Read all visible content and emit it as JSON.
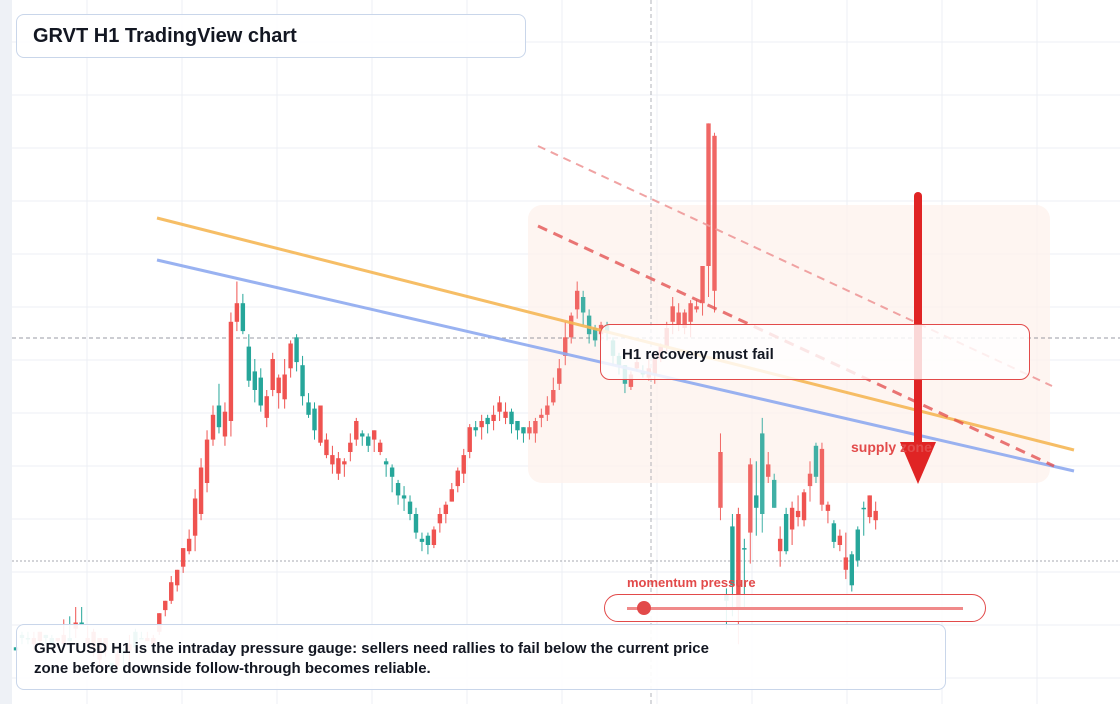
{
  "title": "GRVT H1 TradingView chart",
  "note": "GRVTUSD H1 is the intraday pressure gauge: sellers need rallies to fail below the current price zone before downside follow-through becomes reliable.",
  "callout": "H1 recovery must fail",
  "supply_label": "supply zone",
  "momentum_label": "momentum pressure",
  "momentum_pressure_level": 0.05,
  "colors": {
    "up": "#26a69a",
    "down": "#ef5350",
    "trend_orange": "#f6b756",
    "trend_blue": "#8faaf0",
    "accent_red": "#e24a4a",
    "supply_fill": "#fdf1ec"
  },
  "chart_data": {
    "type": "candlestick",
    "symbol": "GRVTUSD",
    "timeframe": "H1",
    "grid": true,
    "price_axis_labels": false,
    "candles": [
      [
        60,
        16,
        17,
        3,
        20
      ],
      [
        55,
        20,
        21,
        22,
        18
      ],
      [
        60,
        20,
        20,
        22,
        18
      ],
      [
        50,
        20,
        18,
        22,
        16
      ],
      [
        50,
        22,
        19,
        22,
        17
      ],
      [
        55,
        20,
        21,
        21,
        18
      ],
      [
        60,
        18,
        20,
        21,
        17
      ],
      [
        65,
        20,
        19,
        20,
        18
      ],
      [
        60,
        21,
        18,
        26,
        17
      ],
      [
        45,
        19,
        20,
        27,
        24
      ],
      [
        65,
        25,
        23,
        30,
        20
      ],
      [
        60,
        25,
        25,
        30,
        25
      ],
      [
        50,
        20,
        18,
        24,
        16
      ],
      [
        55,
        22,
        17,
        23,
        14
      ],
      [
        30,
        20,
        13,
        20,
        10
      ],
      [
        20,
        20,
        16,
        17,
        14
      ],
      [
        50,
        10,
        12,
        12,
        9
      ],
      [
        45,
        15,
        11,
        16,
        10
      ],
      [
        55,
        15,
        16,
        17,
        11
      ],
      [
        35,
        18,
        16,
        21,
        12
      ],
      [
        45,
        17,
        22,
        23,
        18
      ],
      [
        65,
        20,
        20,
        22,
        21
      ],
      [
        60,
        20,
        19,
        22,
        20
      ],
      [
        40,
        20,
        18,
        21,
        15
      ],
      [
        25,
        28,
        22,
        28,
        21
      ],
      [
        30,
        32,
        29,
        32,
        27
      ],
      [
        40,
        38,
        32,
        40,
        31
      ],
      [
        30,
        42,
        37,
        42,
        35
      ],
      [
        40,
        49,
        43,
        49,
        41
      ],
      [
        30,
        52,
        48,
        55,
        47
      ],
      [
        40,
        65,
        53,
        68,
        48
      ],
      [
        55,
        75,
        60,
        78,
        58
      ],
      [
        50,
        84,
        70,
        87,
        67
      ],
      [
        60,
        92,
        84,
        95,
        82
      ],
      [
        45,
        88,
        95,
        102,
        86
      ],
      [
        35,
        93,
        85,
        96,
        82
      ],
      [
        30,
        122,
        90,
        125,
        85
      ],
      [
        25,
        128,
        122,
        135,
        119
      ],
      [
        10,
        119,
        128,
        131,
        118
      ],
      [
        15,
        103,
        114,
        118,
        101
      ],
      [
        20,
        100,
        106,
        110,
        96
      ],
      [
        30,
        95,
        104,
        107,
        93
      ],
      [
        20,
        98,
        91,
        100,
        88
      ],
      [
        25,
        110,
        100,
        112,
        98
      ],
      [
        25,
        104,
        99,
        105,
        94
      ],
      [
        35,
        105,
        97,
        110,
        94
      ],
      [
        20,
        115,
        107,
        116,
        104
      ],
      [
        15,
        109,
        117,
        118,
        106
      ],
      [
        10,
        98,
        108,
        111,
        95
      ],
      [
        15,
        92,
        96,
        99,
        91
      ],
      [
        15,
        87,
        94,
        96,
        84
      ],
      [
        20,
        95,
        83,
        95,
        82
      ],
      [
        25,
        84,
        79,
        86,
        78
      ],
      [
        30,
        79,
        76,
        82,
        73
      ],
      [
        25,
        78,
        73,
        80,
        71
      ],
      [
        35,
        77,
        76,
        78,
        72
      ],
      [
        30,
        83,
        80,
        86,
        77
      ],
      [
        30,
        90,
        84,
        91,
        82
      ],
      [
        25,
        85,
        86,
        87,
        82
      ],
      [
        30,
        82,
        85,
        86,
        80
      ],
      [
        35,
        87,
        84,
        87,
        80
      ],
      [
        35,
        83,
        80,
        84,
        79
      ],
      [
        30,
        76,
        77,
        78,
        72
      ],
      [
        40,
        72,
        75,
        76,
        67
      ],
      [
        30,
        66,
        70,
        71,
        63
      ],
      [
        25,
        65,
        66,
        69,
        61
      ],
      [
        35,
        60,
        64,
        66,
        58
      ],
      [
        40,
        54,
        60,
        62,
        52
      ],
      [
        30,
        51,
        52,
        54,
        48
      ],
      [
        30,
        50,
        53,
        54,
        47
      ],
      [
        25,
        55,
        50,
        56,
        49
      ],
      [
        30,
        60,
        57,
        62,
        54
      ],
      [
        40,
        63,
        60,
        64,
        57
      ],
      [
        35,
        68,
        64,
        70,
        64
      ],
      [
        30,
        74,
        69,
        75,
        67
      ],
      [
        40,
        79,
        73,
        81,
        70
      ],
      [
        30,
        88,
        80,
        89,
        78
      ],
      [
        35,
        87,
        88,
        90,
        85
      ],
      [
        30,
        90,
        88,
        92,
        84
      ],
      [
        30,
        89,
        91,
        92,
        86
      ],
      [
        20,
        92,
        90,
        95,
        87
      ],
      [
        20,
        96,
        93,
        98,
        90
      ],
      [
        25,
        93,
        91,
        96,
        89
      ],
      [
        30,
        89,
        93,
        94,
        86
      ],
      [
        25,
        87,
        90,
        90,
        84
      ],
      [
        30,
        86,
        88,
        88,
        83
      ],
      [
        25,
        88,
        86,
        90,
        84
      ],
      [
        30,
        90,
        86,
        91,
        83
      ],
      [
        25,
        92,
        91,
        94,
        88
      ],
      [
        30,
        95,
        92,
        98,
        90
      ],
      [
        25,
        100,
        96,
        104,
        95
      ],
      [
        30,
        107,
        102,
        110,
        100
      ],
      [
        30,
        117,
        111,
        122,
        108
      ],
      [
        40,
        124,
        117,
        125,
        115
      ],
      [
        30,
        132,
        126,
        135,
        123
      ],
      [
        40,
        125,
        130,
        132,
        121
      ],
      [
        30,
        118,
        124,
        126,
        115
      ],
      [
        35,
        116,
        120,
        121,
        114
      ],
      [
        40,
        121,
        118,
        122,
        116
      ],
      [
        35,
        119,
        121,
        122,
        116
      ],
      [
        30,
        111,
        116,
        117,
        108
      ],
      [
        35,
        108,
        111,
        112,
        105
      ],
      [
        40,
        102,
        108,
        108,
        99
      ],
      [
        35,
        105,
        101,
        106,
        100
      ],
      [
        25,
        109,
        107,
        111,
        106
      ],
      [
        30,
        105,
        106,
        108,
        104
      ],
      [
        35,
        107,
        104,
        110,
        103
      ],
      [
        30,
        110,
        105,
        112,
        102
      ],
      [
        25,
        114,
        110,
        115,
        109
      ],
      [
        20,
        120,
        114,
        122,
        112
      ],
      [
        25,
        127,
        122,
        130,
        118
      ],
      [
        20,
        125,
        121,
        128,
        119
      ],
      [
        25,
        125,
        120,
        126,
        118
      ],
      [
        30,
        128,
        122,
        129,
        117
      ],
      [
        25,
        127,
        126,
        129,
        125
      ],
      [
        20,
        140,
        128,
        140,
        124
      ],
      [
        30,
        186,
        140,
        186,
        130
      ],
      [
        40,
        182,
        132,
        183,
        125
      ],
      [
        65,
        80,
        62,
        86,
        58
      ],
      [
        80,
        32,
        34,
        36,
        23
      ],
      [
        120,
        37,
        56,
        60,
        27
      ],
      [
        150,
        60,
        30,
        62,
        18
      ],
      [
        160,
        49,
        49,
        52,
        30
      ],
      [
        180,
        76,
        54,
        78,
        44
      ],
      [
        195,
        62,
        66,
        77,
        53
      ],
      [
        200,
        60,
        86,
        91,
        54
      ],
      [
        205,
        76,
        72,
        80,
        70
      ],
      [
        210,
        62,
        71,
        73,
        64
      ],
      [
        215,
        52,
        48,
        56,
        43
      ],
      [
        220,
        48,
        60,
        62,
        47
      ],
      [
        225,
        62,
        55,
        64,
        50
      ],
      [
        230,
        61,
        59,
        66,
        56
      ],
      [
        235,
        67,
        58,
        68,
        56
      ],
      [
        240,
        73,
        69,
        77,
        64
      ],
      [
        242,
        72,
        82,
        83,
        70
      ],
      [
        245,
        81,
        63,
        83,
        61
      ],
      [
        250,
        63,
        61,
        64,
        57
      ],
      [
        255,
        51,
        57,
        58,
        49
      ],
      [
        258,
        53,
        50,
        55,
        48
      ],
      [
        260,
        46,
        42,
        54,
        39
      ],
      [
        263,
        37,
        47,
        48,
        35
      ],
      [
        265,
        45,
        55,
        56,
        43
      ],
      [
        268,
        62,
        62,
        64,
        53
      ],
      [
        270,
        66,
        59,
        66,
        57
      ],
      [
        275,
        61,
        58,
        64,
        55
      ]
    ],
    "trendlines": [
      {
        "color": "orange",
        "style": "solid"
      },
      {
        "color": "blue",
        "style": "solid"
      },
      {
        "color": "red",
        "style": "dashed"
      },
      {
        "color": "light-red",
        "style": "dashed"
      }
    ],
    "annotations": [
      "H1 recovery must fail",
      "supply zone",
      "momentum pressure"
    ]
  }
}
